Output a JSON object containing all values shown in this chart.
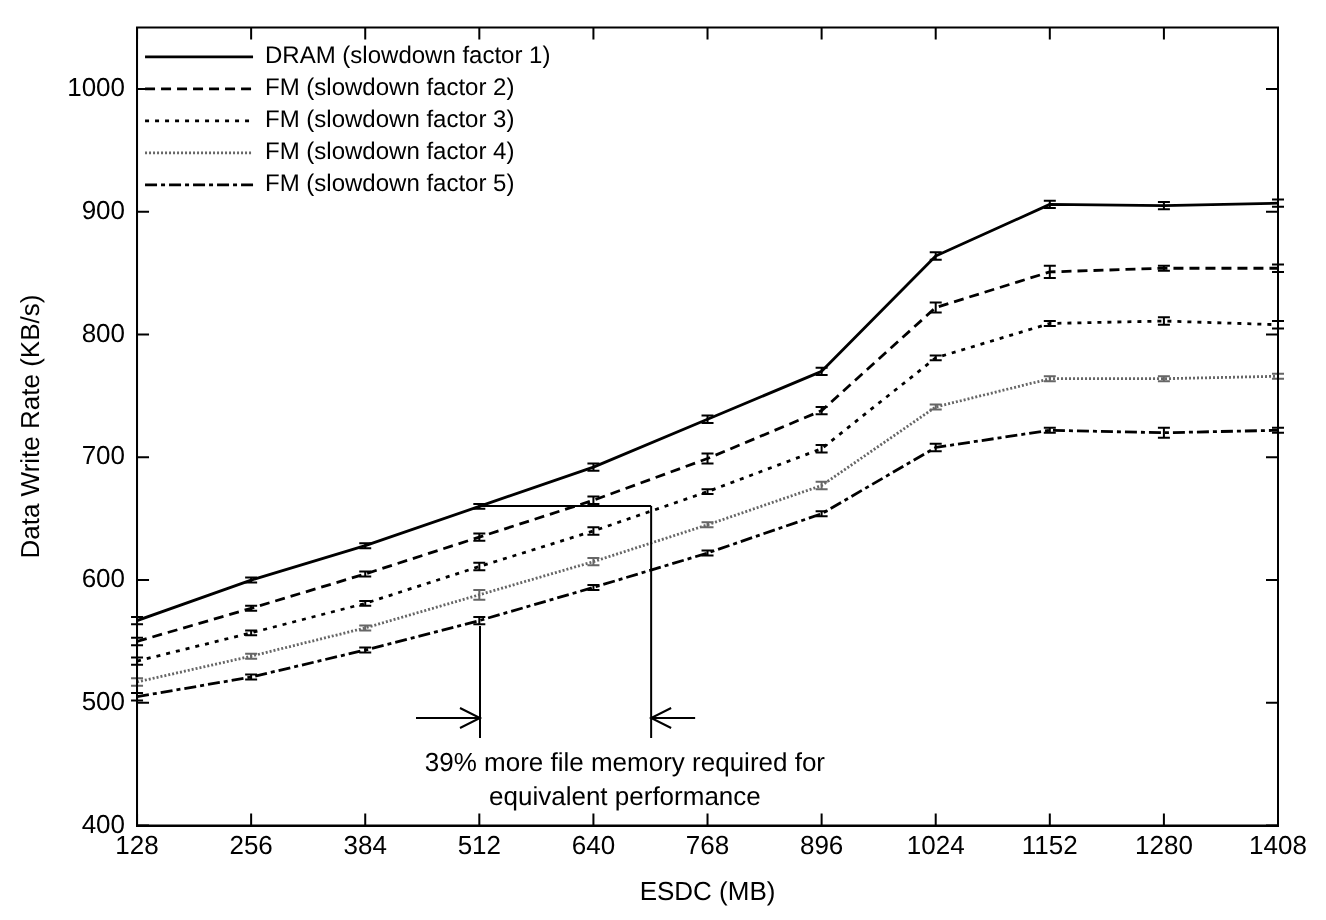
{
  "chart_data": {
    "type": "line",
    "xlabel": "ESDC (MB)",
    "ylabel": "Data Write Rate (KB/s)",
    "x": [
      128,
      256,
      384,
      512,
      640,
      768,
      896,
      1024,
      1152,
      1280,
      1408
    ],
    "xlim": [
      128,
      1408
    ],
    "xticks": [
      128,
      256,
      384,
      512,
      640,
      768,
      896,
      1024,
      1152,
      1280,
      1408
    ],
    "ylim": [
      400,
      1050
    ],
    "yticks": [
      400,
      500,
      600,
      700,
      800,
      900,
      1000
    ],
    "grid": false,
    "legend": "top left",
    "series": [
      {
        "name": "DRAM (slowdown factor 1)",
        "color": "#000000",
        "line_style": "solid",
        "values": [
          567,
          600,
          628,
          660,
          692,
          731,
          770,
          864,
          906,
          905,
          907
        ],
        "errors": [
          3,
          2,
          2,
          2,
          3,
          3,
          3,
          3,
          3,
          3,
          3
        ]
      },
      {
        "name": "FM (slowdown factor 2)",
        "color": "#000000",
        "line_style": "dashed",
        "values": [
          550,
          577,
          605,
          635,
          665,
          699,
          738,
          822,
          851,
          854,
          854
        ],
        "errors": [
          3,
          2,
          2,
          3,
          3,
          4,
          3,
          4,
          5,
          2,
          3
        ]
      },
      {
        "name": "FM (slowdown factor 3)",
        "color": "#000000",
        "line_style": "dotted",
        "values": [
          534,
          557,
          581,
          611,
          640,
          672,
          707,
          781,
          809,
          811,
          808
        ],
        "errors": [
          3,
          2,
          2,
          3,
          3,
          2,
          3,
          2,
          2,
          3,
          3
        ]
      },
      {
        "name": "FM (slowdown factor 4)",
        "color": "#666666",
        "line_style": "dotted",
        "values": [
          517,
          538,
          561,
          588,
          615,
          645,
          677,
          741,
          764,
          764,
          766
        ],
        "errors": [
          3,
          2,
          2,
          4,
          3,
          2,
          3,
          2,
          2,
          2,
          2
        ]
      },
      {
        "name": "FM (slowdown factor 5)",
        "color": "#000000",
        "line_style": "dashdot",
        "values": [
          505,
          521,
          543,
          567,
          594,
          622,
          654,
          708,
          722,
          720,
          722
        ],
        "errors": [
          3,
          2,
          2,
          3,
          2,
          2,
          2,
          3,
          2,
          4,
          2
        ]
      }
    ],
    "annotations": [
      {
        "text": "39% more file memory required for equivalent performance",
        "x": 704,
        "y": 660
      }
    ]
  }
}
